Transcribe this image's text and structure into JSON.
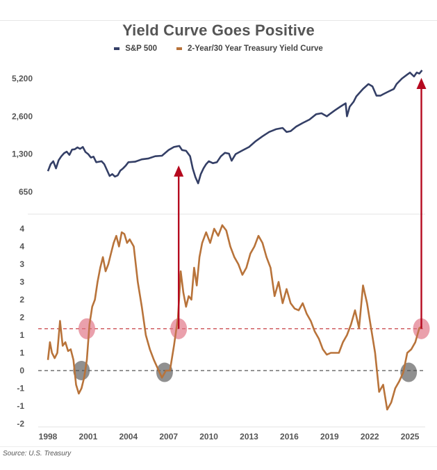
{
  "chart_data": [
    {
      "type": "line",
      "panel": "top",
      "title": "Yield Curve Goes Positive",
      "series_name": "S&P 500",
      "color": "#343f66",
      "yscale": "log",
      "ylim": [
        560,
        6200
      ],
      "yticks": [
        650,
        1300,
        2600,
        5200
      ],
      "ytick_labels": [
        "650",
        "1,300",
        "2,600",
        "5,200"
      ],
      "x": [
        1998.0,
        1998.2,
        1998.4,
        1998.6,
        1998.8,
        1999.0,
        1999.2,
        1999.4,
        1999.6,
        1999.8,
        2000.0,
        2000.2,
        2000.4,
        2000.6,
        2000.8,
        2001.0,
        2001.2,
        2001.4,
        2001.6,
        2001.8,
        2002.0,
        2002.2,
        2002.4,
        2002.6,
        2002.8,
        2003.0,
        2003.2,
        2003.4,
        2003.6,
        2003.8,
        2004.0,
        2004.5,
        2005.0,
        2005.5,
        2006.0,
        2006.5,
        2007.0,
        2007.4,
        2007.8,
        2008.0,
        2008.3,
        2008.6,
        2008.8,
        2009.0,
        2009.2,
        2009.4,
        2009.6,
        2009.8,
        2010.0,
        2010.3,
        2010.6,
        2010.9,
        2011.2,
        2011.5,
        2011.7,
        2012.0,
        2012.5,
        2013.0,
        2013.5,
        2014.0,
        2014.5,
        2015.0,
        2015.5,
        2015.8,
        2016.1,
        2016.5,
        2017.0,
        2017.5,
        2018.0,
        2018.4,
        2018.8,
        2019.0,
        2019.4,
        2019.8,
        2020.0,
        2020.2,
        2020.3,
        2020.5,
        2020.8,
        2021.0,
        2021.5,
        2021.9,
        2022.2,
        2022.5,
        2022.8,
        2023.0,
        2023.4,
        2023.8,
        2024.0,
        2024.4,
        2024.8,
        2025.0,
        2025.3,
        2025.5,
        2025.7,
        2025.9
      ],
      "values": [
        950,
        1080,
        1140,
        1000,
        1160,
        1250,
        1320,
        1360,
        1280,
        1410,
        1420,
        1470,
        1430,
        1480,
        1350,
        1300,
        1220,
        1240,
        1120,
        1130,
        1140,
        1080,
        970,
        870,
        900,
        860,
        880,
        960,
        1000,
        1050,
        1120,
        1130,
        1180,
        1200,
        1250,
        1260,
        1400,
        1480,
        1510,
        1400,
        1380,
        1250,
        1000,
        850,
        760,
        900,
        1000,
        1080,
        1140,
        1100,
        1120,
        1250,
        1330,
        1310,
        1150,
        1300,
        1390,
        1480,
        1650,
        1800,
        1950,
        2050,
        2100,
        1950,
        1980,
        2150,
        2300,
        2450,
        2700,
        2750,
        2600,
        2700,
        2900,
        3100,
        3200,
        3300,
        2600,
        3100,
        3400,
        3750,
        4300,
        4700,
        4500,
        3800,
        3800,
        3900,
        4100,
        4300,
        4700,
        5200,
        5600,
        5800,
        5400,
        5800,
        5700,
        6050
      ]
    },
    {
      "type": "line",
      "panel": "bottom",
      "series_name": "2-Year/30 Year Treasury Yield Curve",
      "color": "#b8733a",
      "ylim": [
        -1.6,
        4.1
      ],
      "yticks": [
        4.0,
        3.5,
        3.0,
        2.5,
        2.0,
        1.5,
        1.0,
        0.5,
        0.0,
        -0.5,
        -1.0,
        -1.5
      ],
      "ytick_labels": [
        "4",
        "4",
        "3",
        "3",
        "2",
        "2",
        "1",
        "1",
        "0",
        "-1",
        "-1",
        "-2"
      ],
      "x": [
        1998.0,
        1998.15,
        1998.3,
        1998.5,
        1998.7,
        1998.9,
        1999.1,
        1999.3,
        1999.5,
        1999.7,
        1999.9,
        2000.1,
        2000.3,
        2000.5,
        2000.7,
        2000.9,
        2001.1,
        2001.3,
        2001.5,
        2001.7,
        2001.9,
        2002.1,
        2002.3,
        2002.5,
        2002.7,
        2002.9,
        2003.1,
        2003.3,
        2003.5,
        2003.7,
        2003.9,
        2004.1,
        2004.4,
        2004.7,
        2005.0,
        2005.3,
        2005.6,
        2005.9,
        2006.2,
        2006.5,
        2006.8,
        2007.1,
        2007.4,
        2007.7,
        2007.9,
        2008.1,
        2008.3,
        2008.5,
        2008.7,
        2008.9,
        2009.1,
        2009.3,
        2009.5,
        2009.8,
        2010.1,
        2010.4,
        2010.7,
        2011.0,
        2011.3,
        2011.6,
        2011.9,
        2012.2,
        2012.5,
        2012.8,
        2013.1,
        2013.4,
        2013.7,
        2014.0,
        2014.3,
        2014.6,
        2014.9,
        2015.2,
        2015.5,
        2015.8,
        2016.1,
        2016.4,
        2016.7,
        2017.0,
        2017.3,
        2017.6,
        2017.9,
        2018.2,
        2018.5,
        2018.8,
        2019.1,
        2019.4,
        2019.7,
        2020.0,
        2020.3,
        2020.6,
        2020.9,
        2021.2,
        2021.5,
        2021.8,
        2022.1,
        2022.4,
        2022.7,
        2023.0,
        2023.3,
        2023.6,
        2023.9,
        2024.2,
        2024.5,
        2024.8,
        2025.1,
        2025.4,
        2025.7,
        2025.9
      ],
      "values": [
        0.3,
        0.8,
        0.5,
        0.35,
        0.5,
        1.4,
        0.7,
        0.8,
        0.55,
        0.6,
        0.3,
        -0.4,
        -0.65,
        -0.5,
        -0.2,
        0.3,
        1.3,
        1.8,
        2.0,
        2.5,
        2.9,
        3.2,
        2.8,
        3.0,
        3.3,
        3.6,
        3.8,
        3.5,
        3.9,
        3.85,
        3.6,
        3.7,
        3.5,
        2.5,
        1.8,
        1.0,
        0.6,
        0.3,
        0.05,
        -0.2,
        0.0,
        0.0,
        0.7,
        1.5,
        2.8,
        2.2,
        1.8,
        2.1,
        2.0,
        2.9,
        2.4,
        3.2,
        3.6,
        3.9,
        3.6,
        4.0,
        3.8,
        4.1,
        3.95,
        3.5,
        3.2,
        3.0,
        2.7,
        2.9,
        3.3,
        3.5,
        3.8,
        3.6,
        3.2,
        2.9,
        2.1,
        2.5,
        1.9,
        2.3,
        1.9,
        1.75,
        1.7,
        1.9,
        1.6,
        1.4,
        1.1,
        0.9,
        0.6,
        0.45,
        0.5,
        0.5,
        0.5,
        0.8,
        1.0,
        1.3,
        1.7,
        1.2,
        2.4,
        1.9,
        1.2,
        0.5,
        -0.6,
        -0.4,
        -1.1,
        -0.9,
        -0.5,
        -0.3,
        -0.05,
        0.5,
        0.6,
        0.8,
        1.2,
        1.25
      ],
      "reference_lines": [
        {
          "value": 0,
          "color": "#555555",
          "style": "dashed"
        },
        {
          "value": 1.18,
          "color": "#c0282e",
          "style": "dashed"
        }
      ],
      "highlight_markers": [
        {
          "x": 2000.5,
          "y": 0.0,
          "kind": "inversion",
          "color": "#555555"
        },
        {
          "x": 2006.7,
          "y": -0.05,
          "kind": "inversion",
          "color": "#555555"
        },
        {
          "x": 2024.9,
          "y": -0.05,
          "kind": "inversion",
          "color": "#555555"
        },
        {
          "x": 2000.9,
          "y": 1.18,
          "kind": "positive-cross",
          "color": "#e07082"
        },
        {
          "x": 2007.75,
          "y": 1.18,
          "kind": "positive-cross",
          "color": "#e07082"
        },
        {
          "x": 2025.85,
          "y": 1.18,
          "kind": "positive-cross",
          "color": "#e07082"
        }
      ],
      "annotations": [
        {
          "type": "arrow",
          "from_x": 2007.75,
          "label": "",
          "color": "#b5091f"
        },
        {
          "type": "arrow",
          "from_x": 2025.85,
          "label": "",
          "color": "#b5091f"
        }
      ]
    }
  ],
  "title": "Yield Curve Goes Positive",
  "legend": [
    {
      "label": "S&P 500",
      "color": "#343f66"
    },
    {
      "label": "2-Year/30 Year Treasury Yield Curve",
      "color": "#b8733a"
    }
  ],
  "xaxis": {
    "ticks": [
      1998,
      2001,
      2004,
      2007,
      2010,
      2013,
      2016,
      2019,
      2022,
      2025
    ],
    "labels": [
      "1998",
      "2001",
      "2004",
      "2007",
      "2010",
      "2013",
      "2016",
      "2019",
      "2022",
      "2025"
    ]
  },
  "source": "Source: U.S. Treasury"
}
